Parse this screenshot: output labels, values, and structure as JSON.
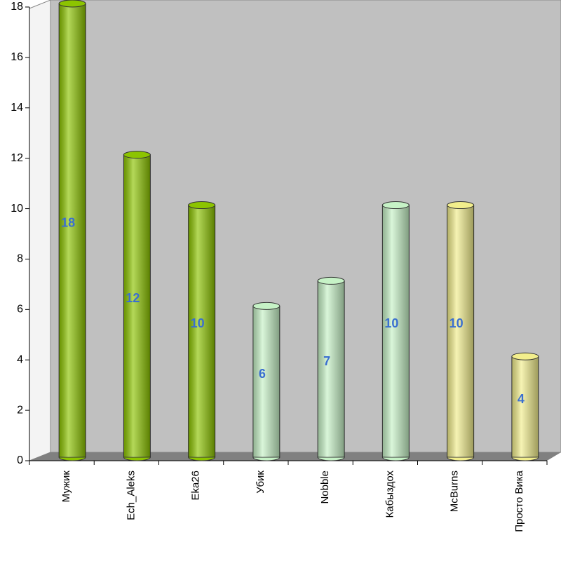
{
  "chart_data": {
    "type": "bar",
    "categories": [
      "Мужик",
      "Ech_Aleks",
      "Eka26",
      "Убик",
      "Nobble",
      "Кабыздох",
      "McBurns",
      "Просто Вика"
    ],
    "values": [
      18,
      12,
      10,
      6,
      7,
      10,
      10,
      4
    ],
    "colors": [
      "#8cc400",
      "#8cc400",
      "#8cc400",
      "#c6f2c6",
      "#c6f2c6",
      "#c6f2c6",
      "#f2ee8c",
      "#f2ee8c"
    ],
    "ylim": [
      0,
      18
    ],
    "yticks": [
      0,
      2,
      4,
      6,
      8,
      10,
      12,
      14,
      16,
      18
    ]
  }
}
